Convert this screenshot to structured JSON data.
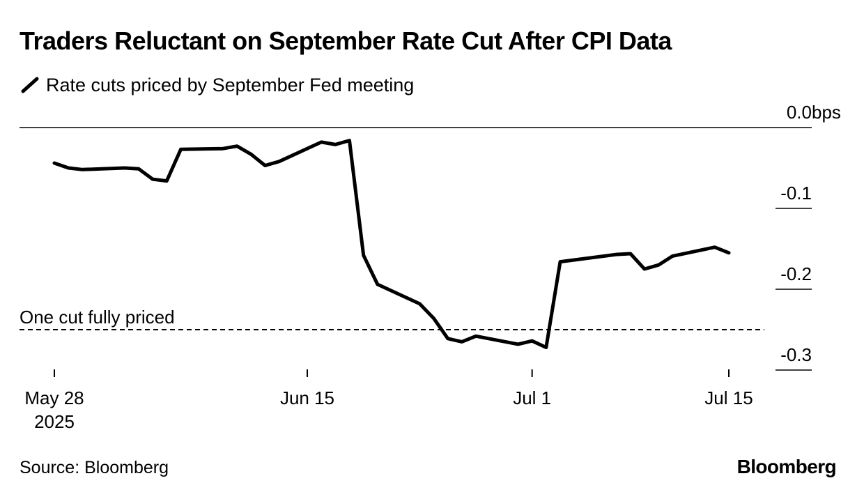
{
  "chart_data": {
    "type": "line",
    "title": "Traders Reluctant on September Rate Cut After CPI Data",
    "series": [
      {
        "name": "Rate cuts priced by September Fed meeting",
        "color": "#000000",
        "points": [
          [
            "2025-05-28",
            -0.044
          ],
          [
            "2025-05-29",
            -0.05
          ],
          [
            "2025-05-30",
            -0.052
          ],
          [
            "2025-06-02",
            -0.05
          ],
          [
            "2025-06-03",
            -0.051
          ],
          [
            "2025-06-04",
            -0.064
          ],
          [
            "2025-06-05",
            -0.066
          ],
          [
            "2025-06-06",
            -0.027
          ],
          [
            "2025-06-09",
            -0.026
          ],
          [
            "2025-06-10",
            -0.023
          ],
          [
            "2025-06-11",
            -0.033
          ],
          [
            "2025-06-12",
            -0.047
          ],
          [
            "2025-06-13",
            -0.042
          ],
          [
            "2025-06-16",
            -0.018
          ],
          [
            "2025-06-17",
            -0.021
          ],
          [
            "2025-06-18",
            -0.016
          ],
          [
            "2025-06-19",
            -0.158
          ],
          [
            "2025-06-20",
            -0.194
          ],
          [
            "2025-06-23",
            -0.218
          ],
          [
            "2025-06-24",
            -0.236
          ],
          [
            "2025-06-25",
            -0.261
          ],
          [
            "2025-06-26",
            -0.265
          ],
          [
            "2025-06-27",
            -0.258
          ],
          [
            "2025-06-30",
            -0.268
          ],
          [
            "2025-07-01",
            -0.264
          ],
          [
            "2025-07-02",
            -0.272
          ],
          [
            "2025-07-03",
            -0.166
          ],
          [
            "2025-07-07",
            -0.157
          ],
          [
            "2025-07-08",
            -0.156
          ],
          [
            "2025-07-09",
            -0.175
          ],
          [
            "2025-07-10",
            -0.17
          ],
          [
            "2025-07-11",
            -0.159
          ],
          [
            "2025-07-14",
            -0.148
          ],
          [
            "2025-07-15",
            -0.155
          ]
        ]
      }
    ],
    "reference_line": {
      "value": -0.25,
      "label": "One cut fully priced",
      "style": "dashed"
    },
    "y_axis": {
      "range": [
        -0.3,
        0.0
      ],
      "ticks": [
        {
          "value": 0.0,
          "label": "0.0"
        },
        {
          "value": -0.1,
          "label": "-0.1"
        },
        {
          "value": -0.2,
          "label": "-0.2"
        },
        {
          "value": -0.3,
          "label": "-0.3"
        }
      ],
      "unit": "bps",
      "position": "right"
    },
    "x_axis": {
      "type": "date",
      "range": [
        "2025-05-28",
        "2025-07-15"
      ],
      "ticks": [
        {
          "date": "2025-05-28",
          "label": "May 28",
          "sublabel": "2025"
        },
        {
          "date": "2025-06-15",
          "label": "Jun 15",
          "sublabel": ""
        },
        {
          "date": "2025-07-01",
          "label": "Jul 1",
          "sublabel": ""
        },
        {
          "date": "2025-07-15",
          "label": "Jul 15",
          "sublabel": ""
        }
      ]
    },
    "grid": false,
    "legend_position": "top-left"
  },
  "footer": {
    "source": "Source: Bloomberg",
    "brand": "Bloomberg"
  }
}
